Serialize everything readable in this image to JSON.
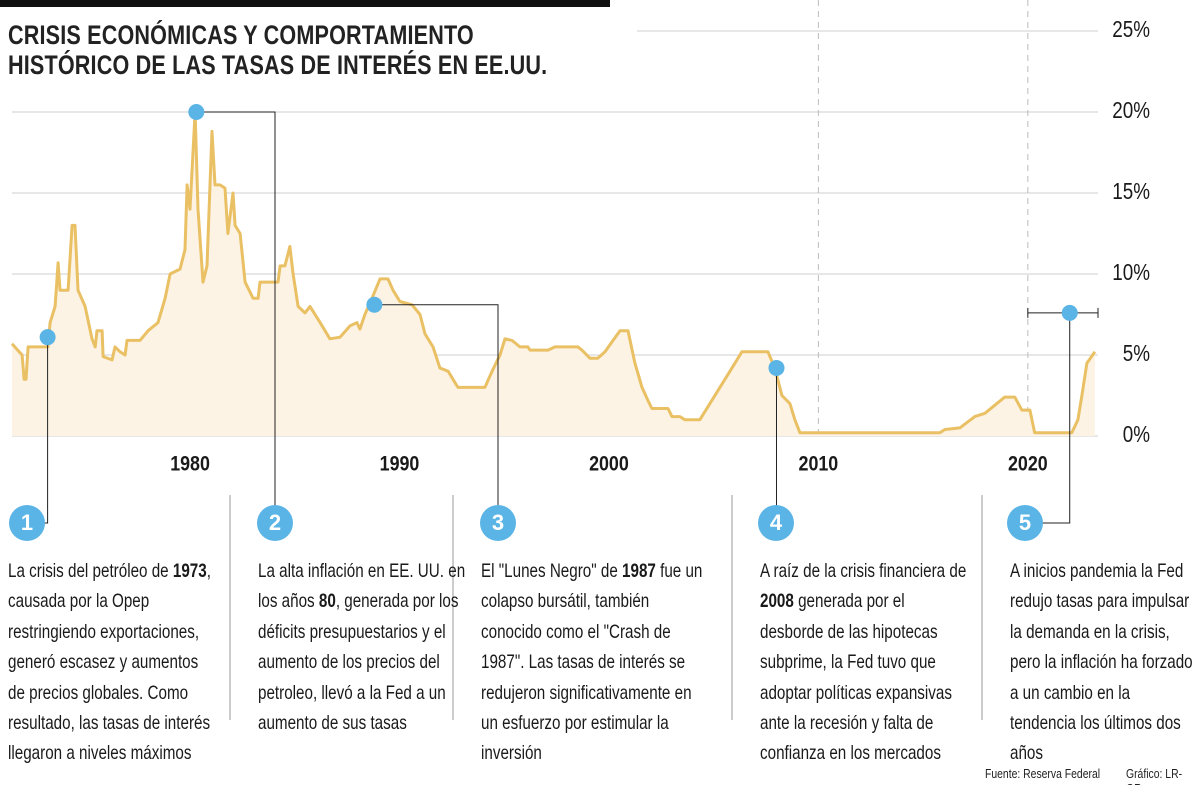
{
  "chart_data": {
    "type": "line",
    "title": "CRISIS ECONÓMICAS Y COMPORTAMIENTO\nHISTÓRICO DE LAS TASAS DE INTERÉS EN EE.UU.",
    "x": [
      1971.5,
      1971.98,
      1972.08,
      1972.17,
      1972.27,
      1973.22,
      1973.32,
      1973.56,
      1973.7,
      1973.79,
      1974.18,
      1974.37,
      1974.51,
      1974.65,
      1974.99,
      1975.32,
      1975.47,
      1975.56,
      1975.8,
      1975.85,
      1976.28,
      1976.42,
      1976.66,
      1976.9,
      1976.99,
      1977.61,
      1978.0,
      1978.47,
      1978.81,
      1979.05,
      1979.52,
      1979.76,
      1979.86,
      1980.0,
      1980.14,
      1980.24,
      1980.38,
      1980.62,
      1980.81,
      1981.05,
      1981.19,
      1981.43,
      1981.67,
      1981.81,
      1982.05,
      1982.15,
      1982.39,
      1982.63,
      1983.01,
      1983.25,
      1983.34,
      1984.2,
      1984.3,
      1984.53,
      1984.77,
      1984.92,
      1985.16,
      1985.49,
      1985.73,
      1986.21,
      1986.68,
      1987.16,
      1987.64,
      1987.97,
      1988.11,
      1988.35,
      1988.69,
      1989.07,
      1989.45,
      1989.69,
      1990.02,
      1990.6,
      1990.98,
      1991.22,
      1991.6,
      1991.93,
      1992.32,
      1992.79,
      1994.08,
      1994.42,
      1994.8,
      1995.04,
      1995.37,
      1995.75,
      1996.13,
      1996.23,
      1997.09,
      1997.42,
      1998.52,
      1998.71,
      1999.09,
      1999.47,
      1999.81,
      2000.14,
      2000.53,
      2000.91,
      2001.24,
      2001.58,
      2001.86,
      2002.05,
      2002.82,
      2003.01,
      2003.39,
      2003.63,
      2004.34,
      2004.82,
      2005.3,
      2005.78,
      2006.35,
      2007.59,
      2007.92,
      2008.26,
      2008.64,
      2008.88,
      2009.12,
      2015.8,
      2016.04,
      2016.75,
      2017.47,
      2017.95,
      2018.9,
      2019.38,
      2019.71,
      2020.1,
      2020.33,
      2022.1,
      2022.39,
      2022.58,
      2022.82,
      2023.2
    ],
    "values": [
      5.7,
      5.0,
      3.5,
      3.5,
      5.5,
      5.5,
      7,
      8,
      10.7,
      9,
      9,
      13,
      13,
      9,
      8,
      6,
      5.5,
      6.5,
      6.5,
      4.9,
      4.7,
      5.5,
      5.2,
      5.0,
      5.9,
      5.9,
      6.5,
      7,
      8.5,
      10,
      10.3,
      11.5,
      15.5,
      14,
      17.5,
      20,
      14,
      9.5,
      10.5,
      18.8,
      15.5,
      15.5,
      15.3,
      12.5,
      15,
      13,
      12.5,
      9.5,
      8.5,
      8.5,
      9.5,
      9.5,
      10.5,
      10.5,
      11.7,
      10,
      8,
      7.6,
      8,
      7,
      6,
      6.1,
      6.8,
      7.0,
      6.6,
      7.5,
      8.5,
      9.7,
      9.7,
      9.0,
      8.3,
      8.1,
      7.5,
      6.3,
      5.5,
      4.2,
      4.0,
      3.0,
      3.0,
      4.0,
      5.0,
      6.0,
      5.9,
      5.5,
      5.5,
      5.3,
      5.3,
      5.5,
      5.5,
      5.3,
      4.8,
      4.8,
      5.2,
      5.8,
      6.5,
      6.5,
      4.5,
      3.0,
      2.2,
      1.7,
      1.7,
      1.2,
      1.2,
      1.0,
      1.0,
      2.0,
      3.0,
      4.0,
      5.2,
      5.2,
      4.2,
      2.5,
      2.0,
      1.0,
      0.2,
      0.2,
      0.4,
      0.5,
      1.2,
      1.4,
      2.4,
      2.4,
      1.6,
      1.6,
      0.2,
      0.2,
      1.0,
      2.5,
      4.5,
      5.2
    ],
    "color": "#e9c064",
    "fill_color": "#fdf3e4",
    "xlim": [
      1971.5,
      2023.35
    ],
    "xticks": [
      1980,
      1990,
      2000,
      2010,
      2020
    ],
    "dashed_xticks": [
      2010,
      2020
    ],
    "ylim": [
      0,
      25
    ],
    "yticks": [
      {
        "value": 0,
        "label": "0%"
      },
      {
        "value": 5,
        "label": "5%"
      },
      {
        "value": 10,
        "label": "10%"
      },
      {
        "value": 15,
        "label": "15%"
      },
      {
        "value": 20,
        "label": "20%"
      },
      {
        "value": 25,
        "label": "25%"
      }
    ],
    "grid": true,
    "marker_color": "#5ab4e6",
    "markers": [
      {
        "x": 1973.2,
        "y": 6.1
      },
      {
        "x": 1980.3,
        "y": 20
      },
      {
        "x": 1988.8,
        "y": 8.1
      },
      {
        "x": 2008.0,
        "y": 4.2
      },
      {
        "x": 2022.0,
        "y": 7.6
      }
    ],
    "annotations": [
      {
        "number": "1",
        "text": [
          {
            "text": "La crisis del petróleo de ",
            "bold": false
          },
          {
            "text": "1973",
            "bold": true
          },
          {
            "text": ", causada por la Opep restringiendo exportaciones, generó escasez y aumentos de precios globales. Como resultado, las tasas de interés llegaron a niveles máximos",
            "bold": false
          }
        ]
      },
      {
        "number": "2",
        "text": [
          {
            "text": "La alta inflación en EE. UU. en los años ",
            "bold": false
          },
          {
            "text": "80",
            "bold": true
          },
          {
            "text": ", generada por los déficits presupuestarios y el aumento de los precios del petroleo, llevó a la Fed a un aumento de sus tasas",
            "bold": false
          }
        ]
      },
      {
        "number": "3",
        "text": [
          {
            "text": "El \"Lunes Negro\" de ",
            "bold": false
          },
          {
            "text": "1987",
            "bold": true
          },
          {
            "text": " fue un colapso bursátil, también conocido como el \"Crash de 1987\". Las tasas de interés se redujeron significativamente en un esfuerzo por estimular la inversión",
            "bold": false
          }
        ]
      },
      {
        "number": "4",
        "text": [
          {
            "text": "A raíz de la crisis financiera de ",
            "bold": false
          },
          {
            "text": "2008",
            "bold": true
          },
          {
            "text": " generada por el desborde de las hipotecas subprime, la Fed tuvo que adoptar políticas expansivas ante la recesión y falta de confianza en los mercados",
            "bold": false
          }
        ]
      },
      {
        "number": "5",
        "text": [
          {
            "text": "A inicios pandemia la Fed redujo tasas para impulsar la demanda en la crisis, pero la inflación ha forzado a un cambio en la tendencia los últimos dos años",
            "bold": false
          }
        ]
      }
    ],
    "source": "Fuente: Reserva Federal",
    "credit": "Gráfico: LR-GR"
  }
}
